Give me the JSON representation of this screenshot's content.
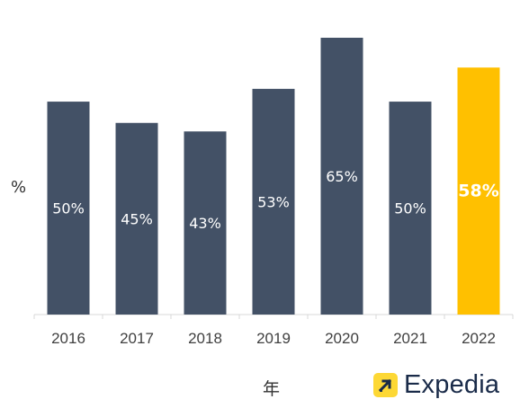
{
  "chart_data": {
    "type": "bar",
    "categories": [
      "2016",
      "2017",
      "2018",
      "2019",
      "2020",
      "2021",
      "2022"
    ],
    "values": [
      50,
      45,
      43,
      53,
      65,
      50,
      58
    ],
    "data_labels": [
      "50%",
      "45%",
      "43%",
      "53%",
      "65%",
      "50%",
      "58%"
    ],
    "ylabel": "%",
    "xlabel": "年",
    "ylim": [
      0,
      65
    ],
    "grid": false,
    "legend": "none",
    "colors": {
      "bar": "#435166",
      "highlight": "#FFC000",
      "highlight_category": "2022"
    }
  },
  "brand": {
    "name": "Expedia",
    "logo_icon": "expedia-arrow-icon"
  }
}
